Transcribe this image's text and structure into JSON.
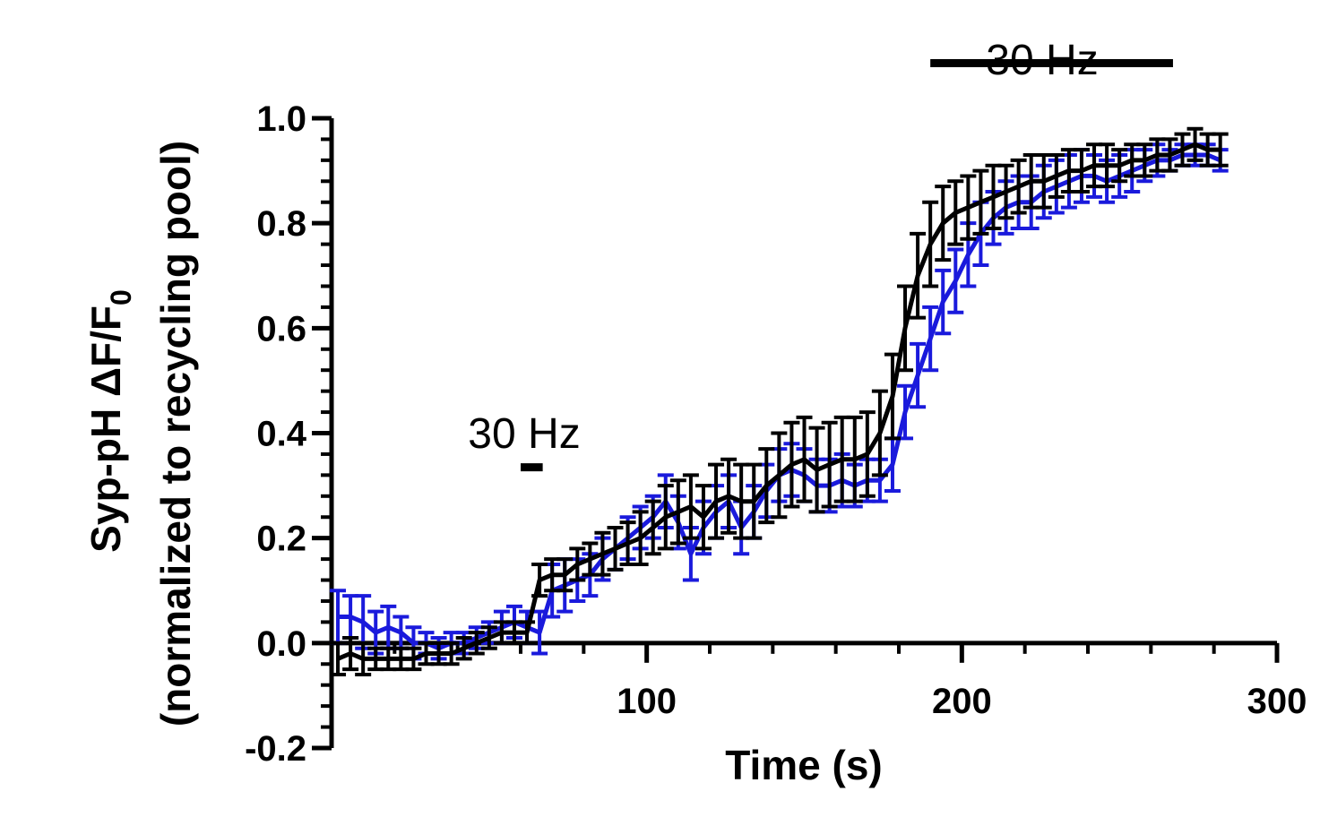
{
  "chart_data": {
    "type": "line",
    "xlabel": "Time (s)",
    "ylabel_line1": "Syp-pH ΔF/F",
    "ylabel_sub": "0",
    "ylabel_line2": "(normalized to recycling pool)",
    "xlim": [
      0,
      300
    ],
    "ylim": [
      -0.2,
      1.0
    ],
    "xticks": [
      "100",
      "200",
      "300"
    ],
    "xtick_values": [
      100,
      200,
      300
    ],
    "yticks": [
      "-0.2",
      "0.0",
      "0.2",
      "0.4",
      "0.6",
      "0.8",
      "1.0"
    ],
    "ytick_values": [
      -0.2,
      0.0,
      0.2,
      0.4,
      0.6,
      0.8,
      1.0
    ],
    "grid": false,
    "legend": "none",
    "annotations": [
      {
        "text": "30 Hz",
        "bar_x": [
          60,
          67
        ],
        "bar_y": 0.335
      },
      {
        "text": "30 Hz",
        "bar_x": [
          190,
          267
        ],
        "bar_y": 1.105
      }
    ],
    "series": [
      {
        "color": "#1a1adc",
        "x": [
          2,
          6,
          10,
          14,
          18,
          22,
          26,
          30,
          34,
          38,
          42,
          46,
          50,
          54,
          58,
          62,
          66,
          70,
          74,
          78,
          82,
          86,
          90,
          94,
          98,
          102,
          106,
          110,
          114,
          118,
          122,
          126,
          130,
          134,
          138,
          142,
          146,
          150,
          154,
          158,
          162,
          166,
          170,
          174,
          178,
          182,
          186,
          190,
          194,
          198,
          202,
          206,
          210,
          214,
          218,
          222,
          226,
          230,
          234,
          238,
          242,
          246,
          250,
          254,
          258,
          262,
          266,
          270,
          274,
          278,
          282
        ],
        "y": [
          0.05,
          0.05,
          0.04,
          0.02,
          0.03,
          0.02,
          0.0,
          0.0,
          -0.01,
          0.0,
          0.0,
          0.01,
          0.02,
          0.03,
          0.04,
          0.03,
          0.02,
          0.1,
          0.11,
          0.12,
          0.13,
          0.16,
          0.18,
          0.2,
          0.22,
          0.24,
          0.27,
          0.23,
          0.17,
          0.22,
          0.25,
          0.27,
          0.22,
          0.25,
          0.29,
          0.32,
          0.33,
          0.32,
          0.3,
          0.3,
          0.31,
          0.3,
          0.31,
          0.31,
          0.34,
          0.44,
          0.51,
          0.58,
          0.65,
          0.69,
          0.74,
          0.78,
          0.81,
          0.83,
          0.84,
          0.84,
          0.86,
          0.87,
          0.88,
          0.89,
          0.89,
          0.88,
          0.89,
          0.9,
          0.91,
          0.92,
          0.92,
          0.93,
          0.93,
          0.93,
          0.92
        ],
        "err": [
          0.05,
          0.04,
          0.05,
          0.04,
          0.04,
          0.03,
          0.03,
          0.02,
          0.02,
          0.02,
          0.02,
          0.02,
          0.02,
          0.03,
          0.03,
          0.03,
          0.04,
          0.05,
          0.05,
          0.04,
          0.04,
          0.04,
          0.04,
          0.04,
          0.04,
          0.04,
          0.05,
          0.05,
          0.05,
          0.05,
          0.05,
          0.05,
          0.05,
          0.05,
          0.05,
          0.05,
          0.05,
          0.05,
          0.05,
          0.05,
          0.05,
          0.04,
          0.04,
          0.04,
          0.05,
          0.05,
          0.06,
          0.06,
          0.06,
          0.06,
          0.06,
          0.06,
          0.05,
          0.05,
          0.05,
          0.05,
          0.05,
          0.05,
          0.05,
          0.05,
          0.04,
          0.04,
          0.04,
          0.04,
          0.03,
          0.03,
          0.02,
          0.02,
          0.02,
          0.02,
          0.02
        ]
      },
      {
        "color": "#000000",
        "x": [
          2,
          6,
          10,
          14,
          18,
          22,
          26,
          30,
          34,
          38,
          42,
          46,
          50,
          54,
          58,
          62,
          66,
          70,
          74,
          78,
          82,
          86,
          90,
          94,
          98,
          102,
          106,
          110,
          114,
          118,
          122,
          126,
          130,
          134,
          138,
          142,
          146,
          150,
          154,
          158,
          162,
          166,
          170,
          174,
          178,
          182,
          186,
          190,
          194,
          198,
          202,
          206,
          210,
          214,
          218,
          222,
          226,
          230,
          234,
          238,
          242,
          246,
          250,
          254,
          258,
          262,
          266,
          270,
          274,
          278,
          282
        ],
        "y": [
          -0.03,
          -0.02,
          -0.03,
          -0.03,
          -0.03,
          -0.03,
          -0.03,
          -0.02,
          -0.02,
          -0.02,
          -0.01,
          0.0,
          0.01,
          0.02,
          0.02,
          0.02,
          0.12,
          0.13,
          0.13,
          0.15,
          0.16,
          0.17,
          0.18,
          0.19,
          0.2,
          0.22,
          0.24,
          0.25,
          0.26,
          0.24,
          0.27,
          0.28,
          0.27,
          0.27,
          0.3,
          0.32,
          0.34,
          0.35,
          0.33,
          0.34,
          0.35,
          0.35,
          0.36,
          0.4,
          0.47,
          0.6,
          0.7,
          0.76,
          0.8,
          0.82,
          0.83,
          0.84,
          0.85,
          0.86,
          0.87,
          0.88,
          0.88,
          0.89,
          0.9,
          0.9,
          0.91,
          0.91,
          0.91,
          0.92,
          0.92,
          0.93,
          0.93,
          0.94,
          0.95,
          0.94,
          0.94
        ],
        "err": [
          0.03,
          0.03,
          0.03,
          0.02,
          0.02,
          0.02,
          0.02,
          0.02,
          0.02,
          0.02,
          0.02,
          0.02,
          0.02,
          0.02,
          0.02,
          0.02,
          0.03,
          0.03,
          0.03,
          0.03,
          0.03,
          0.04,
          0.04,
          0.04,
          0.05,
          0.05,
          0.06,
          0.06,
          0.06,
          0.06,
          0.07,
          0.07,
          0.07,
          0.07,
          0.07,
          0.08,
          0.08,
          0.08,
          0.08,
          0.08,
          0.08,
          0.08,
          0.08,
          0.08,
          0.08,
          0.08,
          0.08,
          0.08,
          0.07,
          0.06,
          0.06,
          0.06,
          0.06,
          0.05,
          0.05,
          0.05,
          0.05,
          0.04,
          0.04,
          0.04,
          0.04,
          0.04,
          0.03,
          0.03,
          0.03,
          0.03,
          0.03,
          0.03,
          0.03,
          0.03,
          0.03
        ]
      }
    ]
  }
}
